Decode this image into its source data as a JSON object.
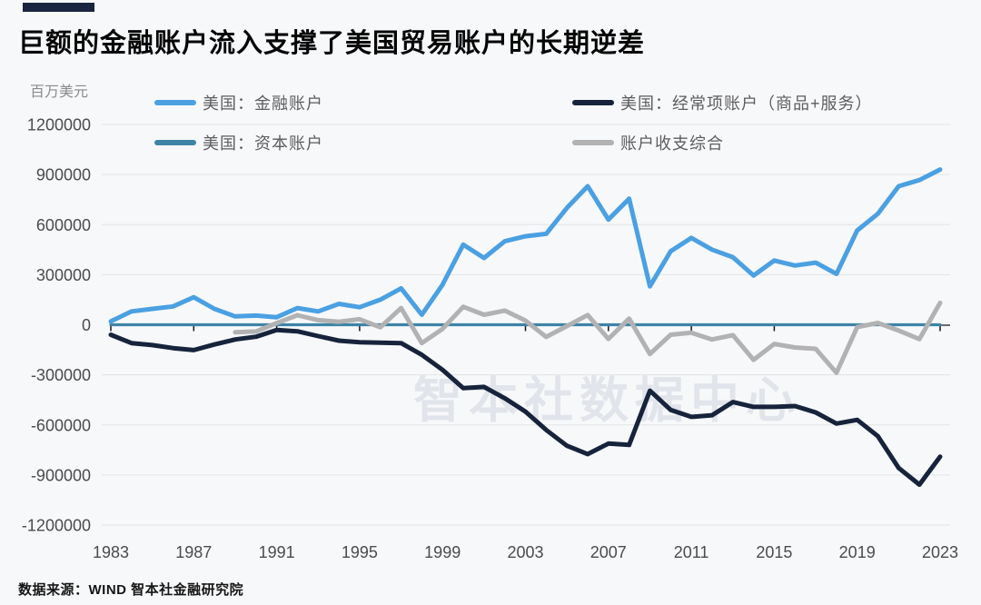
{
  "title": "巨额的金融账户流入支撑了美国贸易账户的长期逆差",
  "unit_label": "百万美元",
  "legend": {
    "items": [
      {
        "label": "美国：金融账户",
        "color": "#4ba0e2"
      },
      {
        "label": "美国：经常项账户（商品+服务）",
        "color": "#16233b"
      },
      {
        "label": "美国：资本账户",
        "color": "#3e84a6"
      },
      {
        "label": "账户收支综合",
        "color": "#b2b2b3"
      }
    ]
  },
  "watermark": {
    "text": "智本社数据中心"
  },
  "footer": {
    "source": "数据来源：WIND 智本社金融研究院"
  },
  "colors": {
    "background": "#f7f8fa",
    "gridline": "#e6e7ea",
    "zero_axis": "#141414",
    "tick_text": "#4b4b4b"
  },
  "chart_data": {
    "type": "line",
    "title": "巨额的金融账户流入支撑了美国贸易账户的长期逆差",
    "ylabel": "百万美元",
    "grid": "horizontal",
    "legend_position": "top",
    "x": [
      1983,
      1984,
      1985,
      1986,
      1987,
      1988,
      1989,
      1990,
      1991,
      1992,
      1993,
      1994,
      1995,
      1996,
      1997,
      1998,
      1999,
      2000,
      2001,
      2002,
      2003,
      2004,
      2005,
      2006,
      2007,
      2008,
      2009,
      2010,
      2011,
      2012,
      2013,
      2014,
      2015,
      2016,
      2017,
      2018,
      2019,
      2020,
      2021,
      2022,
      2023
    ],
    "x_tick_labels": [
      "1983",
      "1987",
      "1991",
      "1995",
      "1999",
      "2003",
      "2007",
      "2011",
      "2015",
      "2019",
      "2023"
    ],
    "x_tick_years": [
      1983,
      1987,
      1991,
      1995,
      1999,
      2003,
      2007,
      2011,
      2015,
      2019,
      2023
    ],
    "y_ticks": [
      1200000,
      900000,
      600000,
      300000,
      0,
      -300000,
      -600000,
      -900000,
      -1200000
    ],
    "y_tick_labels": [
      "1200000",
      "900000",
      "600000",
      "300000",
      "0",
      "-300000",
      "-600000",
      "-900000",
      "-1200000"
    ],
    "ylim": [
      -1200000,
      1200000
    ],
    "series": [
      {
        "key": "capital-account",
        "name": "美国：资本账户",
        "color": "#3e84a6",
        "width": 3.2,
        "values": [
          0,
          0,
          0,
          0,
          0,
          0,
          0,
          0,
          0,
          0,
          0,
          0,
          0,
          0,
          0,
          0,
          0,
          0,
          0,
          0,
          0,
          0,
          0,
          0,
          0,
          0,
          0,
          0,
          0,
          0,
          0,
          0,
          0,
          0,
          0,
          0,
          0,
          0,
          0,
          0,
          0
        ]
      },
      {
        "key": "balance-combined",
        "name": "账户收支综合",
        "color": "#b2b2b3",
        "width": 5,
        "values": [
          null,
          null,
          null,
          null,
          null,
          null,
          -45000,
          -40000,
          10000,
          57000,
          28000,
          18000,
          33000,
          -15000,
          100000,
          -110000,
          -25000,
          108000,
          60000,
          85000,
          25000,
          -73000,
          -8000,
          58000,
          -85000,
          37000,
          -175000,
          -60000,
          -48000,
          -88000,
          -62000,
          -210000,
          -115000,
          -136000,
          -144000,
          -288000,
          -14000,
          11000,
          -35000,
          -86000,
          131000
        ]
      },
      {
        "key": "current-account",
        "name": "美国：经常项账户（商品+服务）",
        "color": "#16233b",
        "width": 5,
        "values": [
          -60000,
          -110000,
          -122000,
          -140000,
          -152000,
          -118000,
          -88000,
          -72000,
          -31000,
          -39000,
          -68000,
          -95000,
          -105000,
          -108000,
          -110000,
          -180000,
          -270000,
          -380000,
          -372000,
          -440000,
          -520000,
          -630000,
          -725000,
          -775000,
          -712000,
          -720000,
          -395000,
          -510000,
          -552000,
          -542000,
          -463000,
          -492000,
          -492000,
          -487000,
          -525000,
          -592000,
          -570000,
          -668000,
          -858000,
          -958000,
          -790000
        ]
      },
      {
        "key": "financial-account",
        "name": "美国：金融账户",
        "color": "#4ba0e2",
        "width": 5,
        "values": [
          20000,
          80000,
          95000,
          110000,
          165000,
          95000,
          50000,
          55000,
          45000,
          100000,
          80000,
          125000,
          105000,
          150000,
          218000,
          60000,
          240000,
          480000,
          400000,
          500000,
          530000,
          545000,
          700000,
          830000,
          630000,
          755000,
          230000,
          440000,
          520000,
          450000,
          405000,
          295000,
          385000,
          355000,
          372000,
          305000,
          565000,
          665000,
          830000,
          867000,
          930000
        ]
      }
    ]
  }
}
